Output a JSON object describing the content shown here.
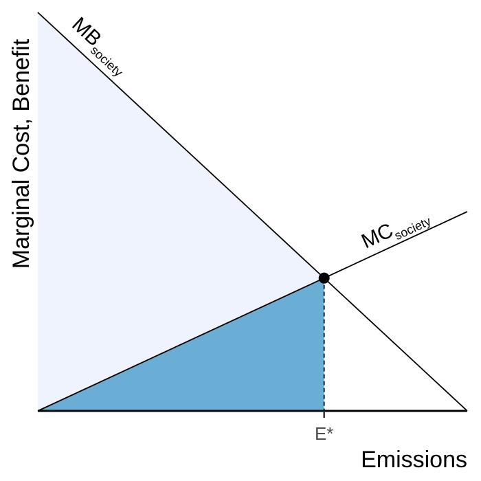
{
  "chart_data": {
    "type": "line",
    "xlabel": "Emissions",
    "ylabel": "Marginal Cost, Benefit",
    "xlim": [
      0,
      1
    ],
    "ylim": [
      0,
      1
    ],
    "x_ticks": [
      {
        "value": 0.6667,
        "label": "E*"
      }
    ],
    "series": [
      {
        "name": "MB",
        "subscript": "society",
        "x": [
          0,
          1
        ],
        "y": [
          1,
          0
        ]
      },
      {
        "name": "MC",
        "subscript": "society",
        "x": [
          0,
          1
        ],
        "y": [
          0,
          0.5
        ]
      }
    ],
    "equilibrium": {
      "x": 0.6667,
      "y": 0.3333
    },
    "shaded_regions": [
      {
        "id": "area-under-mb",
        "color": "#eef3fe"
      },
      {
        "id": "area-under-mc",
        "color": "#6aaed6"
      }
    ]
  }
}
